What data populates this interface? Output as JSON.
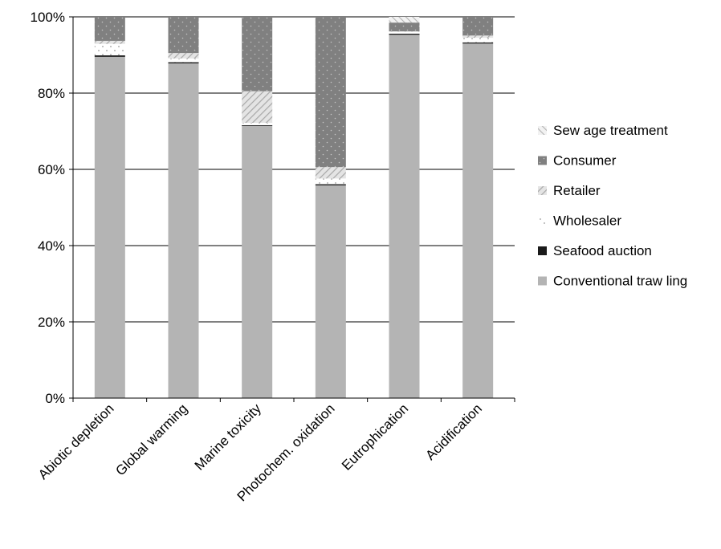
{
  "chart_data": {
    "type": "bar",
    "stacked": true,
    "percent": true,
    "categories": [
      "Abiotic depletion",
      "Global warming",
      "Marine toxicity",
      "Photochem. oxidation",
      "Eutrophication",
      "Acidification"
    ],
    "series": [
      {
        "name": "Conventional traw ling",
        "values": [
          89.5,
          87.8,
          71.4,
          55.8,
          95.3,
          93.0
        ],
        "color": "#b4b4b4",
        "pattern": "solid"
      },
      {
        "name": "Seafood auction",
        "values": [
          0.4,
          0.3,
          0.2,
          0.3,
          0.3,
          0.3
        ],
        "color": "#1a1a1a",
        "pattern": "solid"
      },
      {
        "name": "Wholesaler",
        "values": [
          3.0,
          1.0,
          0.6,
          1.5,
          0.5,
          1.2
        ],
        "color": "#ffffff",
        "pattern": "dots-sparse"
      },
      {
        "name": "Retailer",
        "values": [
          0.8,
          1.4,
          8.3,
          3.0,
          0.1,
          0.6
        ],
        "color": "#d2d2d2",
        "pattern": "diagonal"
      },
      {
        "name": "Consumer",
        "values": [
          6.3,
          9.5,
          19.5,
          39.4,
          2.3,
          4.9
        ],
        "color": "#808080",
        "pattern": "dots-dense"
      },
      {
        "name": "Sew age treatment",
        "values": [
          0.0,
          0.0,
          0.0,
          0.0,
          1.5,
          0.0
        ],
        "color": "#c8c8c8",
        "pattern": "diagonal-light"
      }
    ],
    "legend_order": [
      "Sew age treatment",
      "Consumer",
      "Retailer",
      "Wholesaler",
      "Seafood auction",
      "Conventional traw ling"
    ],
    "y_ticks": [
      "0%",
      "20%",
      "40%",
      "60%",
      "80%",
      "100%"
    ],
    "y_tick_values": [
      0,
      20,
      40,
      60,
      80,
      100
    ],
    "ylim": [
      0,
      100
    ],
    "grid": true,
    "legend_position": "right",
    "title": "",
    "xlabel": "",
    "ylabel": ""
  }
}
